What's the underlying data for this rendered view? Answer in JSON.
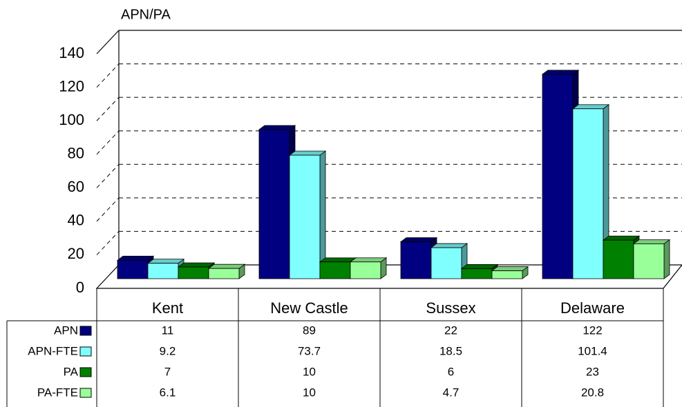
{
  "chart_data": {
    "type": "bar",
    "title": "APN/PA",
    "categories": [
      "Kent",
      "New Castle",
      "Sussex",
      "Delaware"
    ],
    "series": [
      {
        "name": "APN",
        "color": "#000080",
        "values": [
          11,
          89,
          22,
          122
        ]
      },
      {
        "name": "APN-FTE",
        "color": "#80ffff",
        "values": [
          9.2,
          73.7,
          18.5,
          101.4
        ]
      },
      {
        "name": "PA",
        "color": "#008000",
        "values": [
          7,
          10,
          6,
          23
        ]
      },
      {
        "name": "PA-FTE",
        "color": "#99ff99",
        "values": [
          6.1,
          10,
          4.7,
          20.8
        ]
      }
    ],
    "ylim": [
      0,
      140
    ],
    "yticks": [
      0,
      20,
      40,
      60,
      80,
      100,
      120,
      140
    ],
    "grid": true
  }
}
